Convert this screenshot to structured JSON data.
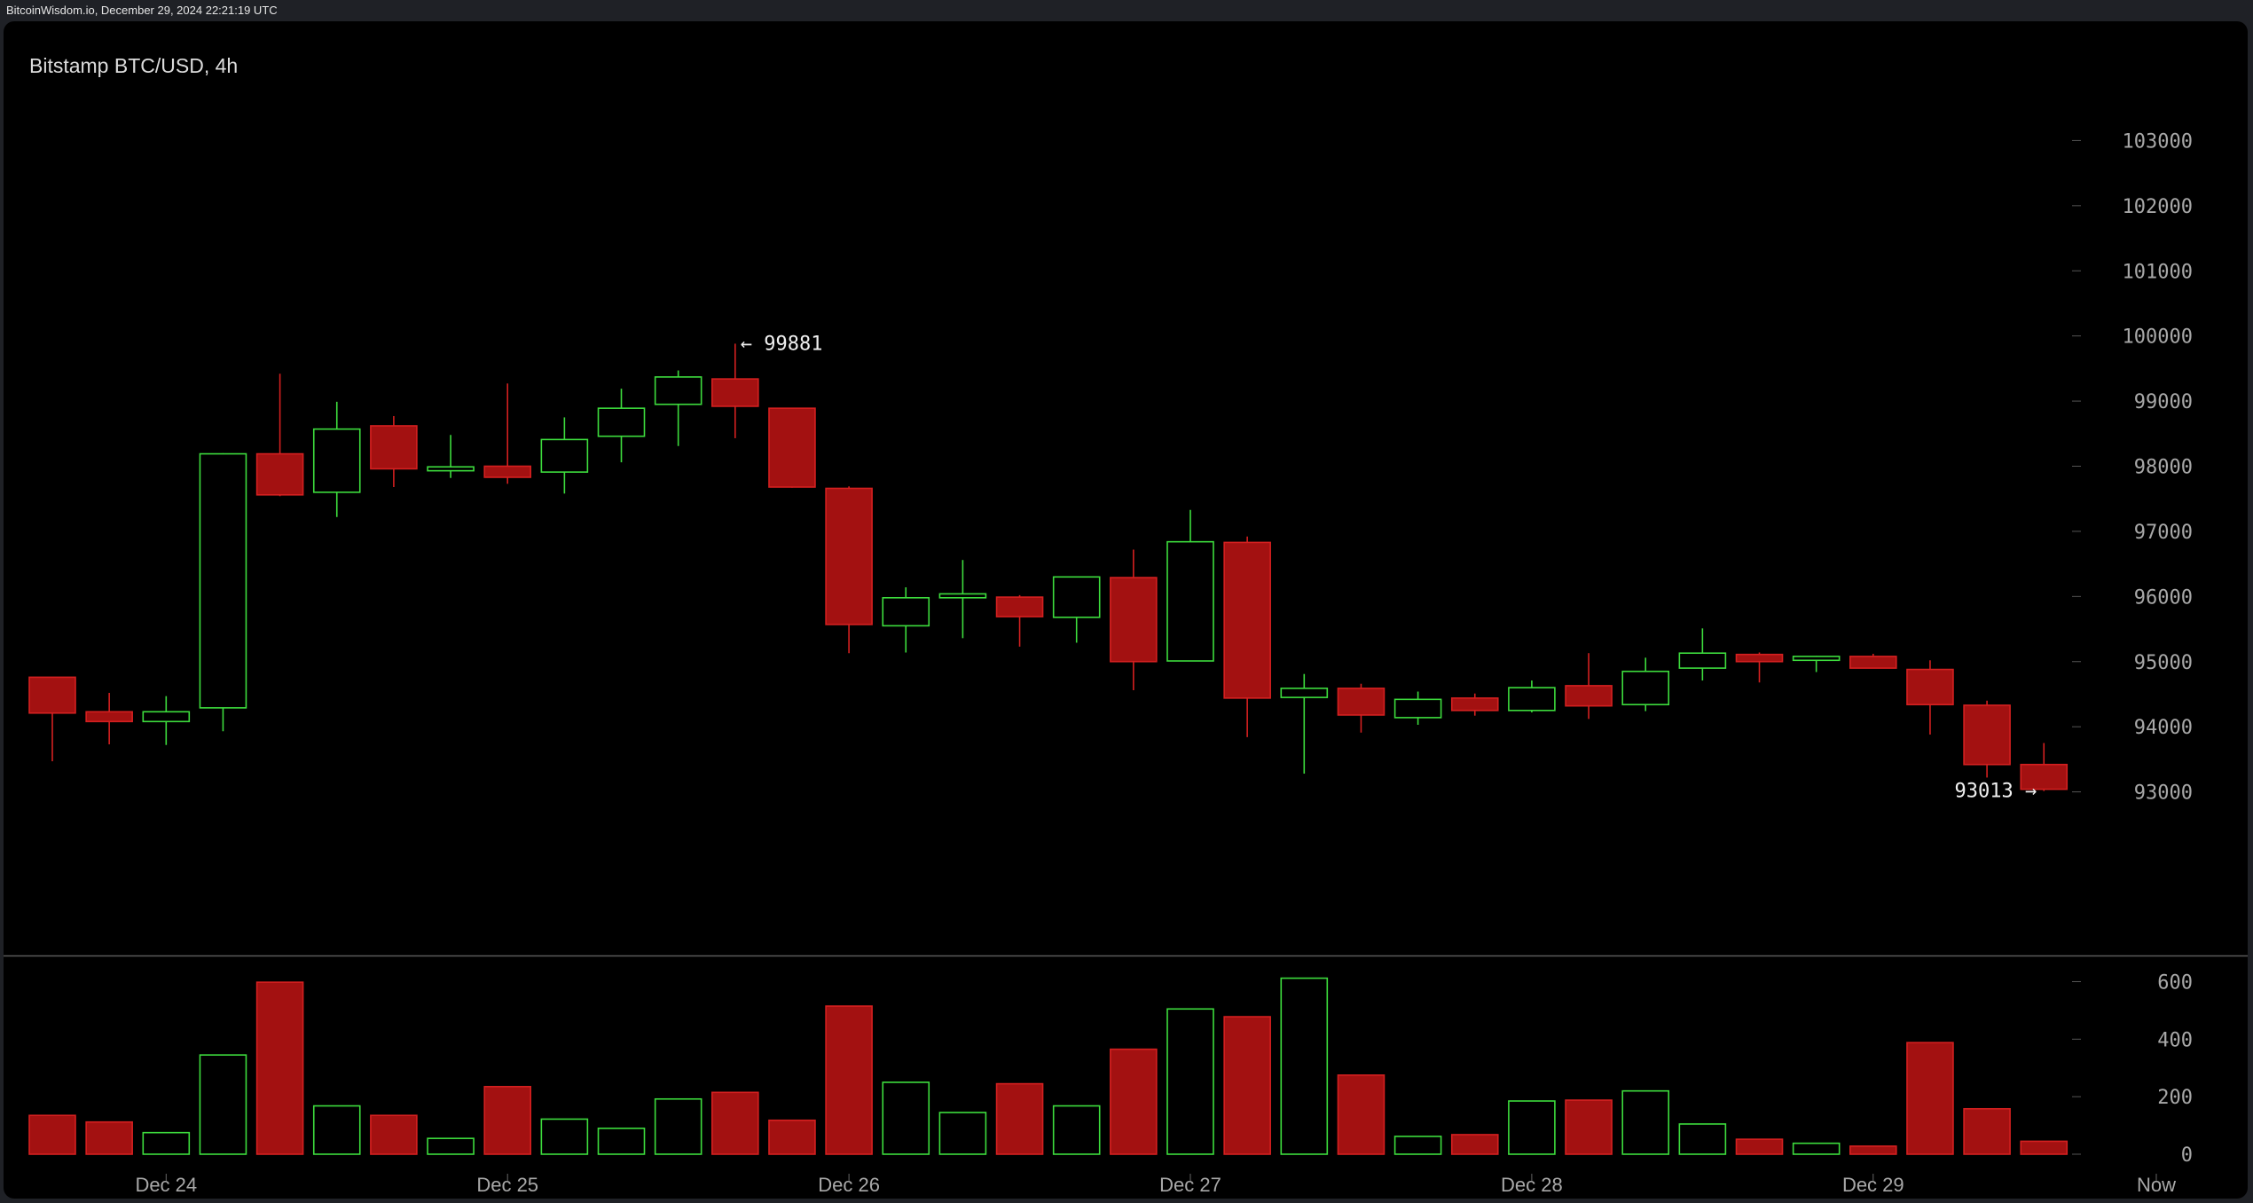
{
  "header": {
    "source_timestamp": "BitcoinWisdom.io, December 29, 2024 22:21:19 UTC"
  },
  "colors": {
    "up": "#3ddc3d",
    "down": "#a31111",
    "down_stroke": "#d42020",
    "axis_text": "#a8a8a8",
    "annotation_text": "#f0f0f0"
  },
  "chart_data": {
    "type": "candlestick",
    "title": "Bitstamp BTC/USD, 4h",
    "x_tick_labels": [
      "Dec 24",
      "Dec 25",
      "Dec 26",
      "Dec 27",
      "Dec 28",
      "Dec 29",
      "Now"
    ],
    "price_axis": {
      "ticks": [
        93000,
        94000,
        95000,
        96000,
        97000,
        98000,
        99000,
        100000,
        101000,
        102000,
        103000
      ],
      "ylim": [
        92000,
        104000
      ]
    },
    "volume_axis": {
      "ticks": [
        0,
        200,
        400,
        600
      ],
      "ylim": [
        0,
        620
      ]
    },
    "candles": [
      {
        "o": 94760,
        "h": 94760,
        "l": 93470,
        "c": 94210,
        "v": 135
      },
      {
        "o": 94230,
        "h": 94520,
        "l": 93730,
        "c": 94080,
        "v": 112
      },
      {
        "o": 94080,
        "h": 94470,
        "l": 93720,
        "c": 94230,
        "v": 75
      },
      {
        "o": 94290,
        "h": 98200,
        "l": 93930,
        "c": 98190,
        "v": 345
      },
      {
        "o": 98190,
        "h": 99420,
        "l": 97540,
        "c": 97560,
        "v": 598
      },
      {
        "o": 97600,
        "h": 98990,
        "l": 97220,
        "c": 98570,
        "v": 168
      },
      {
        "o": 98620,
        "h": 98770,
        "l": 97680,
        "c": 97960,
        "v": 135
      },
      {
        "o": 97930,
        "h": 98480,
        "l": 97820,
        "c": 97990,
        "v": 55
      },
      {
        "o": 98000,
        "h": 99270,
        "l": 97730,
        "c": 97830,
        "v": 235
      },
      {
        "o": 97910,
        "h": 98750,
        "l": 97580,
        "c": 98410,
        "v": 122
      },
      {
        "o": 98460,
        "h": 99190,
        "l": 98060,
        "c": 98890,
        "v": 90
      },
      {
        "o": 98950,
        "h": 99470,
        "l": 98310,
        "c": 99370,
        "v": 192
      },
      {
        "o": 99340,
        "h": 99881,
        "l": 98430,
        "c": 98920,
        "v": 215
      },
      {
        "o": 98890,
        "h": 98890,
        "l": 97670,
        "c": 97680,
        "v": 118
      },
      {
        "o": 97660,
        "h": 97690,
        "l": 95130,
        "c": 95570,
        "v": 515
      },
      {
        "o": 95550,
        "h": 96140,
        "l": 95140,
        "c": 95980,
        "v": 250
      },
      {
        "o": 95980,
        "h": 96560,
        "l": 95360,
        "c": 96040,
        "v": 145
      },
      {
        "o": 95990,
        "h": 96020,
        "l": 95230,
        "c": 95690,
        "v": 245
      },
      {
        "o": 95680,
        "h": 96300,
        "l": 95290,
        "c": 96300,
        "v": 168
      },
      {
        "o": 96290,
        "h": 96720,
        "l": 94560,
        "c": 95000,
        "v": 365
      },
      {
        "o": 95010,
        "h": 97330,
        "l": 95010,
        "c": 96840,
        "v": 505
      },
      {
        "o": 96830,
        "h": 96920,
        "l": 93840,
        "c": 94440,
        "v": 478
      },
      {
        "o": 94450,
        "h": 94810,
        "l": 93280,
        "c": 94590,
        "v": 612
      },
      {
        "o": 94590,
        "h": 94660,
        "l": 93910,
        "c": 94180,
        "v": 275
      },
      {
        "o": 94140,
        "h": 94540,
        "l": 94030,
        "c": 94420,
        "v": 62
      },
      {
        "o": 94440,
        "h": 94510,
        "l": 94170,
        "c": 94250,
        "v": 68
      },
      {
        "o": 94250,
        "h": 94710,
        "l": 94220,
        "c": 94600,
        "v": 185
      },
      {
        "o": 94630,
        "h": 95130,
        "l": 94120,
        "c": 94320,
        "v": 188
      },
      {
        "o": 94340,
        "h": 95060,
        "l": 94240,
        "c": 94850,
        "v": 220
      },
      {
        "o": 94900,
        "h": 95510,
        "l": 94710,
        "c": 95130,
        "v": 105
      },
      {
        "o": 95110,
        "h": 95140,
        "l": 94680,
        "c": 95000,
        "v": 52
      },
      {
        "o": 95020,
        "h": 95090,
        "l": 94840,
        "c": 95080,
        "v": 38
      },
      {
        "o": 95080,
        "h": 95120,
        "l": 94900,
        "c": 94900,
        "v": 28
      },
      {
        "o": 94880,
        "h": 95020,
        "l": 93880,
        "c": 94340,
        "v": 388
      },
      {
        "o": 94330,
        "h": 94400,
        "l": 93220,
        "c": 93420,
        "v": 158
      },
      {
        "o": 93420,
        "h": 93750,
        "l": 93013,
        "c": 93040,
        "v": 45
      }
    ],
    "annotations": [
      {
        "text": "← 99881",
        "price": 99881,
        "candle": 12,
        "side": "right"
      },
      {
        "text": "93013 →",
        "price": 93013,
        "candle": 35,
        "side": "left"
      }
    ]
  }
}
